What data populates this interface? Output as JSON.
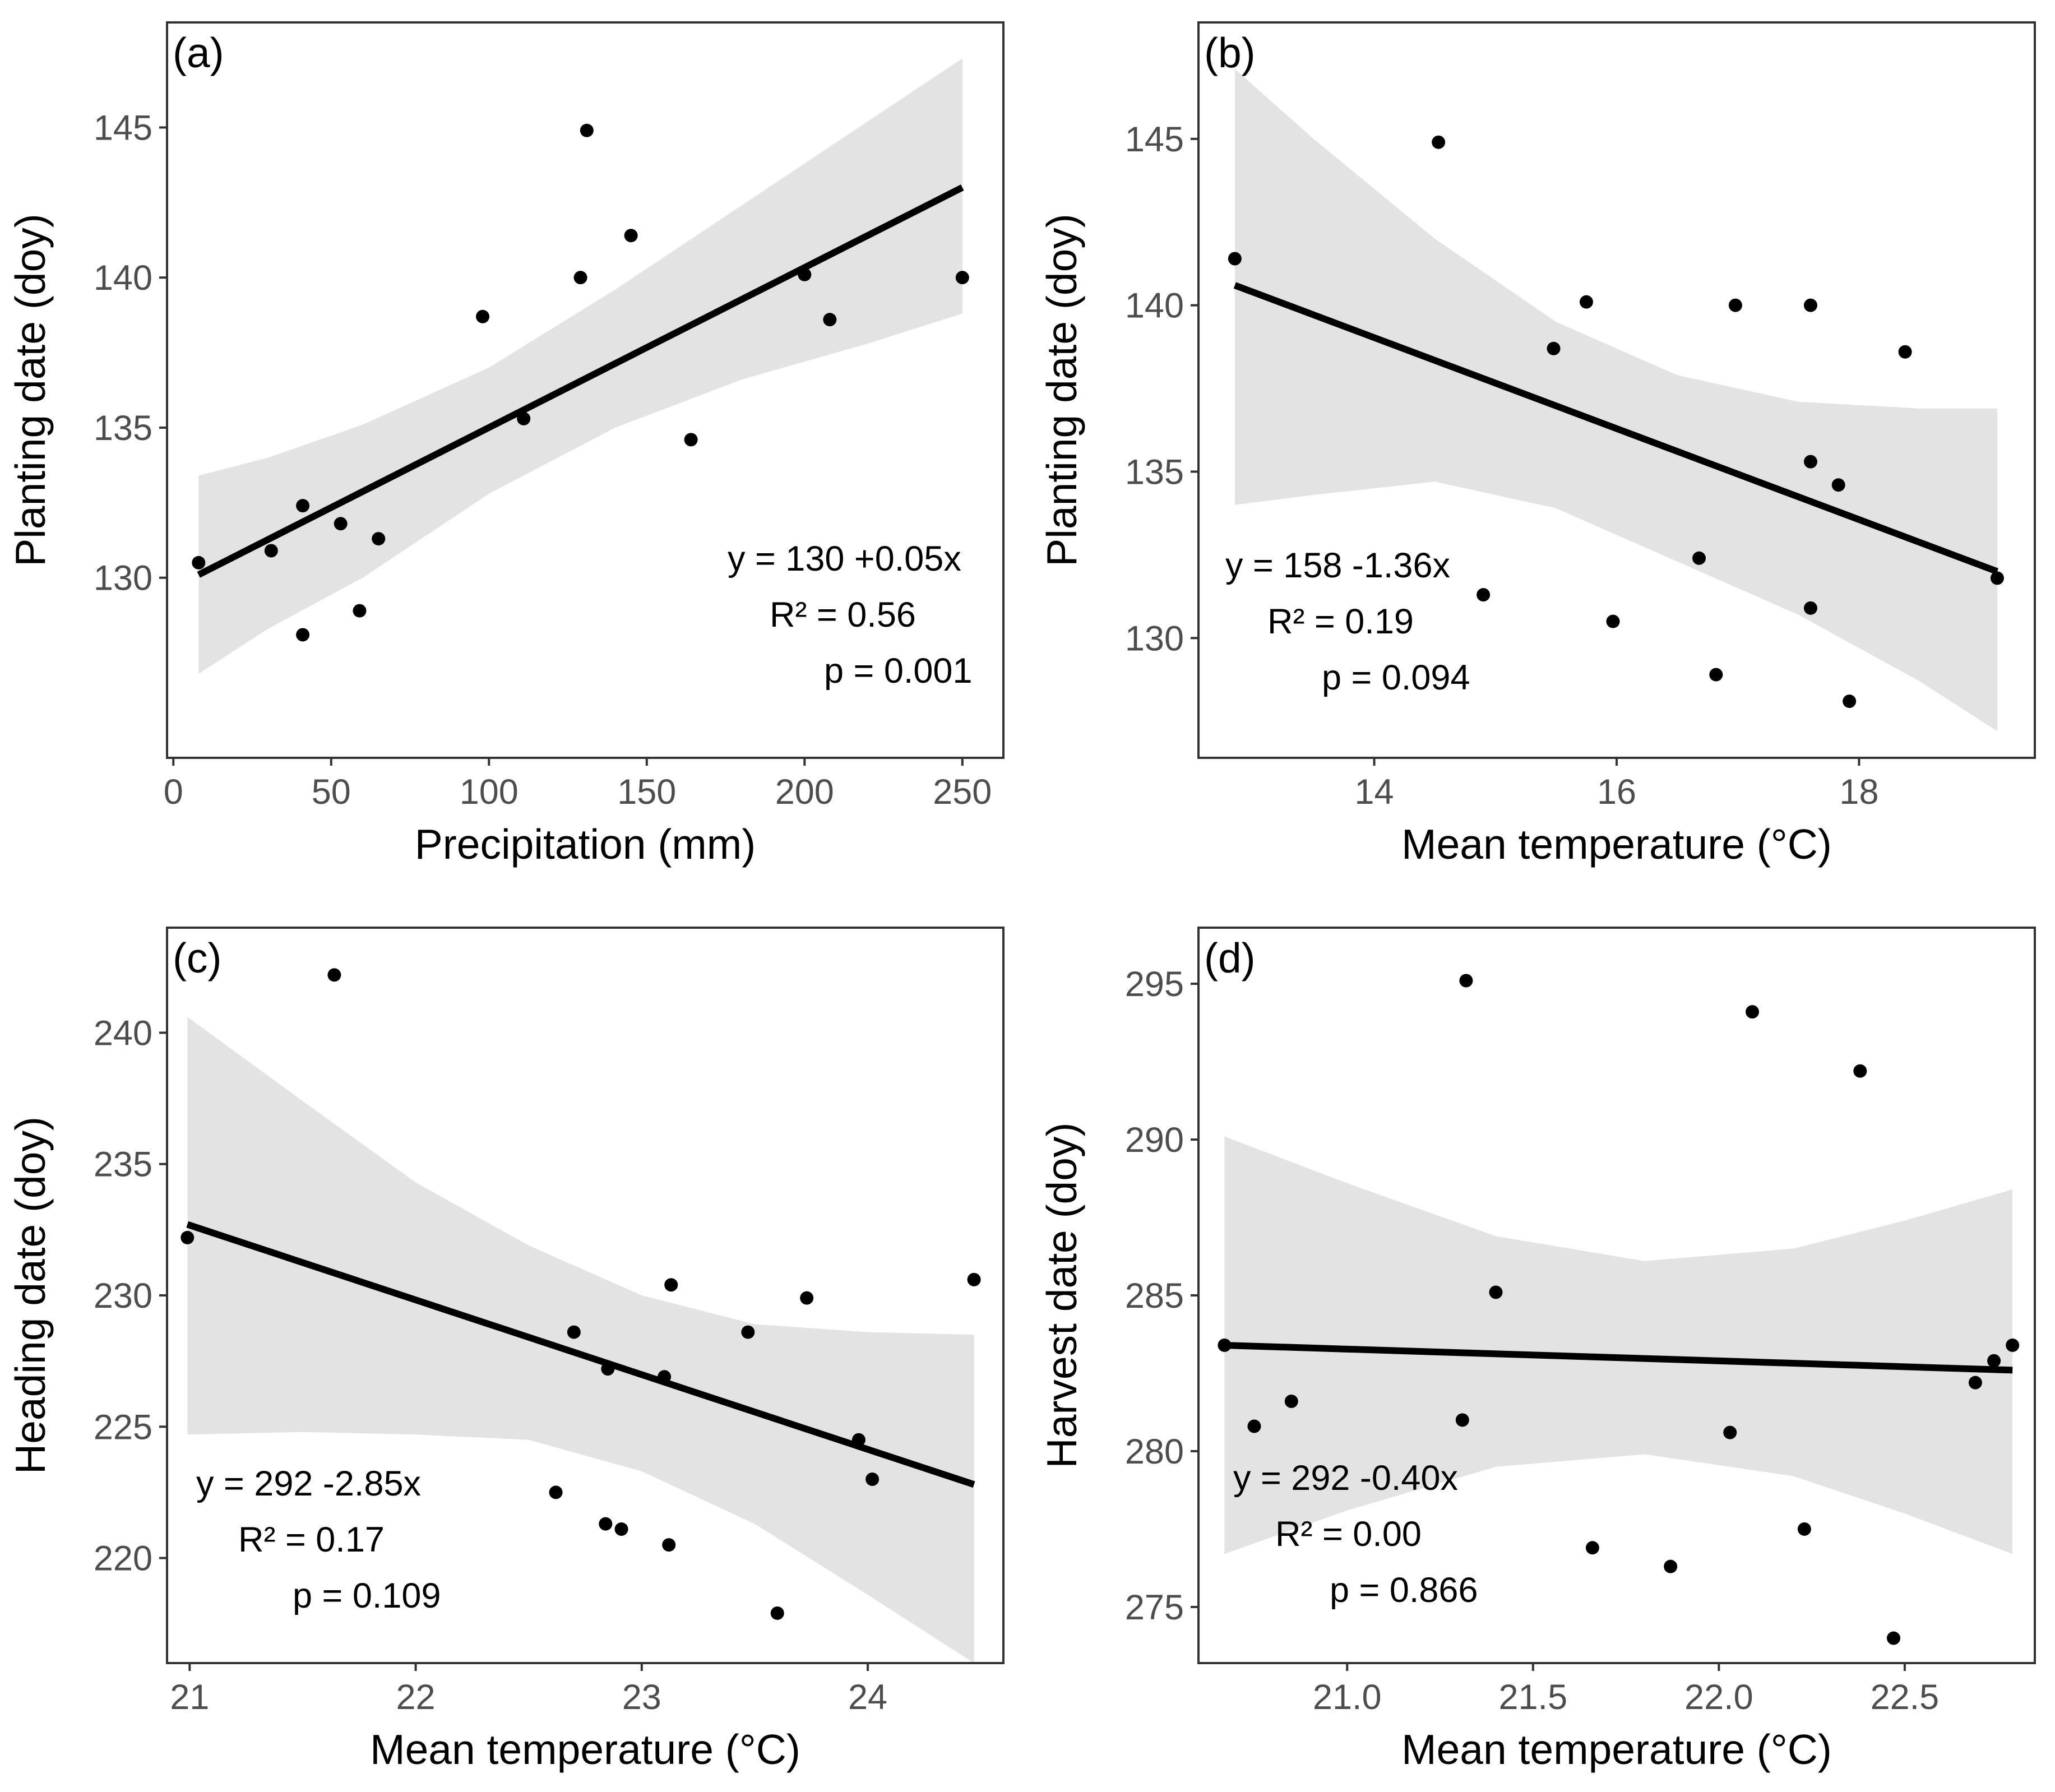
{
  "chart_data": [
    {
      "type": "scatter",
      "panel_label": "(a)",
      "xlabel": "Precipitation (mm)",
      "ylabel": "Planting date (doy)",
      "xlim": [
        -2,
        263
      ],
      "ylim": [
        124,
        148.5
      ],
      "xticks": [
        0,
        50,
        100,
        150,
        200,
        250
      ],
      "yticks": [
        130,
        135,
        140,
        145
      ],
      "xtick_labels": [
        "0",
        "50",
        "100",
        "150",
        "200",
        "250"
      ],
      "ytick_labels": [
        "130",
        "135",
        "140",
        "145"
      ],
      "points": [
        {
          "x": 8,
          "y": 130.5
        },
        {
          "x": 31,
          "y": 130.9
        },
        {
          "x": 41,
          "y": 128.1
        },
        {
          "x": 41,
          "y": 132.4
        },
        {
          "x": 53,
          "y": 131.8
        },
        {
          "x": 59,
          "y": 128.9
        },
        {
          "x": 65,
          "y": 131.3
        },
        {
          "x": 98,
          "y": 138.7
        },
        {
          "x": 111,
          "y": 135.3
        },
        {
          "x": 129,
          "y": 140.0
        },
        {
          "x": 131,
          "y": 144.9
        },
        {
          "x": 145,
          "y": 141.4
        },
        {
          "x": 164,
          "y": 134.6
        },
        {
          "x": 200,
          "y": 140.1
        },
        {
          "x": 208,
          "y": 138.6
        },
        {
          "x": 250,
          "y": 140.0
        }
      ],
      "fit": {
        "x": [
          8,
          250
        ],
        "y": [
          130.1,
          143.0
        ]
      },
      "band": {
        "x": [
          8,
          30,
          60,
          100,
          140,
          180,
          220,
          250
        ],
        "upper": [
          133.4,
          134.0,
          135.1,
          137.0,
          139.6,
          142.4,
          145.2,
          147.3
        ],
        "lower": [
          126.8,
          128.3,
          130.0,
          132.8,
          135.0,
          136.6,
          137.8,
          138.8
        ]
      },
      "annotation": {
        "position": "bottom-right",
        "lines": [
          "y = 130 +0.05x",
          "R² = 0.56",
          "p = 0.001"
        ]
      }
    },
    {
      "type": "scatter",
      "panel_label": "(b)",
      "xlabel": "Mean temperature (°C)",
      "ylabel": "Planting date (doy)",
      "xlim": [
        12.55,
        19.45
      ],
      "ylim": [
        126.4,
        148.5
      ],
      "xticks": [
        14,
        16,
        18
      ],
      "yticks": [
        130,
        135,
        140,
        145
      ],
      "xtick_labels": [
        "14",
        "16",
        "18"
      ],
      "ytick_labels": [
        "130",
        "135",
        "140",
        "145"
      ],
      "points": [
        {
          "x": 12.85,
          "y": 141.4
        },
        {
          "x": 14.53,
          "y": 144.9
        },
        {
          "x": 14.9,
          "y": 131.3
        },
        {
          "x": 15.48,
          "y": 138.7
        },
        {
          "x": 15.75,
          "y": 140.1
        },
        {
          "x": 15.97,
          "y": 130.5
        },
        {
          "x": 16.68,
          "y": 132.4
        },
        {
          "x": 16.82,
          "y": 128.9
        },
        {
          "x": 16.98,
          "y": 140.0
        },
        {
          "x": 17.6,
          "y": 140.0
        },
        {
          "x": 17.6,
          "y": 135.3
        },
        {
          "x": 17.6,
          "y": 130.9
        },
        {
          "x": 17.83,
          "y": 134.6
        },
        {
          "x": 17.92,
          "y": 128.1
        },
        {
          "x": 18.38,
          "y": 138.6
        },
        {
          "x": 19.14,
          "y": 131.8
        }
      ],
      "fit": {
        "x": [
          12.85,
          19.14
        ],
        "y": [
          140.6,
          132.0
        ]
      },
      "band": {
        "x": [
          12.85,
          13.5,
          14.5,
          15.5,
          16.5,
          17.5,
          18.5,
          19.14
        ],
        "upper": [
          147.1,
          145.0,
          142.0,
          139.5,
          137.9,
          137.1,
          136.9,
          136.9
        ],
        "lower": [
          134.0,
          134.3,
          134.7,
          133.9,
          132.3,
          130.7,
          128.7,
          127.2
        ]
      },
      "annotation": {
        "position": "bottom-left",
        "lines": [
          "y = 158 -1.36x",
          "R² = 0.19",
          "p = 0.094"
        ]
      }
    },
    {
      "type": "scatter",
      "panel_label": "(c)",
      "xlabel": "Mean temperature (°C)",
      "ylabel": "Heading date (doy)",
      "xlim": [
        20.9,
        24.6
      ],
      "ylim": [
        216.0,
        244.0
      ],
      "xticks": [
        21,
        22,
        23,
        24
      ],
      "yticks": [
        220,
        225,
        230,
        235,
        240
      ],
      "xtick_labels": [
        "21",
        "22",
        "23",
        "24"
      ],
      "ytick_labels": [
        "220",
        "225",
        "230",
        "235",
        "240"
      ],
      "points": [
        {
          "x": 20.99,
          "y": 232.2
        },
        {
          "x": 21.64,
          "y": 242.2
        },
        {
          "x": 22.62,
          "y": 222.5
        },
        {
          "x": 22.7,
          "y": 228.6
        },
        {
          "x": 22.84,
          "y": 221.3
        },
        {
          "x": 22.85,
          "y": 227.2
        },
        {
          "x": 22.91,
          "y": 221.1
        },
        {
          "x": 23.1,
          "y": 226.9
        },
        {
          "x": 23.12,
          "y": 220.5
        },
        {
          "x": 23.13,
          "y": 230.4
        },
        {
          "x": 23.47,
          "y": 228.6
        },
        {
          "x": 23.6,
          "y": 217.9
        },
        {
          "x": 23.73,
          "y": 229.9
        },
        {
          "x": 23.96,
          "y": 224.5
        },
        {
          "x": 24.02,
          "y": 223.0
        },
        {
          "x": 24.47,
          "y": 230.6
        }
      ],
      "fit": {
        "x": [
          20.99,
          24.47
        ],
        "y": [
          232.7,
          222.8
        ]
      },
      "band": {
        "x": [
          20.99,
          21.5,
          22.0,
          22.5,
          23.0,
          23.5,
          24.0,
          24.47
        ],
        "upper": [
          240.6,
          237.4,
          234.3,
          231.9,
          230.0,
          228.9,
          228.6,
          228.5
        ],
        "lower": [
          224.7,
          224.8,
          224.7,
          224.5,
          223.3,
          221.3,
          218.6,
          216.0
        ]
      },
      "annotation": {
        "position": "bottom-left",
        "lines": [
          "y = 292 -2.85x",
          "R² = 0.17",
          "p = 0.109"
        ]
      }
    },
    {
      "type": "scatter",
      "panel_label": "(d)",
      "xlabel": "Mean temperature (°C)",
      "ylabel": "Harvest date (doy)",
      "xlim": [
        20.6,
        22.85
      ],
      "ylim": [
        273.2,
        296.8
      ],
      "xticks": [
        21.0,
        21.5,
        22.0,
        22.5
      ],
      "yticks": [
        275,
        280,
        285,
        290,
        295
      ],
      "xtick_labels": [
        "21.0",
        "21.5",
        "22.0",
        "22.5"
      ],
      "ytick_labels": [
        "275",
        "280",
        "285",
        "290",
        "295"
      ],
      "points": [
        {
          "x": 20.67,
          "y": 283.4
        },
        {
          "x": 20.75,
          "y": 280.8
        },
        {
          "x": 20.85,
          "y": 281.6
        },
        {
          "x": 21.31,
          "y": 281.0
        },
        {
          "x": 21.32,
          "y": 295.1
        },
        {
          "x": 21.4,
          "y": 285.1
        },
        {
          "x": 21.66,
          "y": 276.9
        },
        {
          "x": 21.87,
          "y": 276.3
        },
        {
          "x": 22.03,
          "y": 280.6
        },
        {
          "x": 22.09,
          "y": 294.1
        },
        {
          "x": 22.23,
          "y": 277.5
        },
        {
          "x": 22.38,
          "y": 292.2
        },
        {
          "x": 22.47,
          "y": 274.0
        },
        {
          "x": 22.69,
          "y": 282.2
        },
        {
          "x": 22.74,
          "y": 282.9
        },
        {
          "x": 22.79,
          "y": 283.4
        }
      ],
      "fit": {
        "x": [
          20.67,
          22.79
        ],
        "y": [
          283.4,
          282.6
        ]
      },
      "band": {
        "x": [
          20.67,
          21.0,
          21.4,
          21.8,
          22.2,
          22.5,
          22.79
        ],
        "upper": [
          290.1,
          288.6,
          286.9,
          286.1,
          286.5,
          287.4,
          288.4
        ],
        "lower": [
          276.7,
          278.1,
          279.5,
          279.9,
          279.2,
          278.0,
          276.7
        ]
      },
      "annotation": {
        "position": "bottom-left",
        "lines": [
          "y = 292 -0.40x",
          "R² = 0.00",
          "p = 0.866"
        ]
      }
    }
  ]
}
